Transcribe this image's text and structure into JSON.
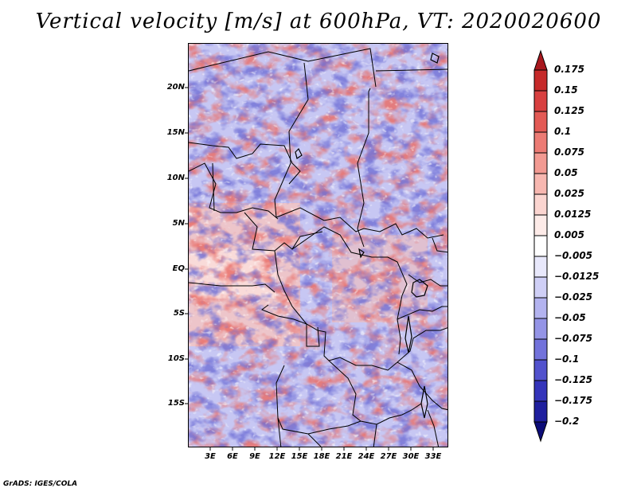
{
  "title": "Vertical velocity [m/s] at 600hPa, VT: 2020020600",
  "credit": "GrADS: IGES/COLA",
  "map": {
    "lat_labels": [
      "20N",
      "15N",
      "10N",
      "5N",
      "EQ",
      "5S",
      "10S",
      "15S"
    ],
    "lon_labels": [
      "3E",
      "6E",
      "9E",
      "12E",
      "15E",
      "18E",
      "21E",
      "24E",
      "27E",
      "30E",
      "33E"
    ]
  },
  "colorbar": {
    "labels": [
      "0.175",
      "0.15",
      "0.125",
      "0.1",
      "0.075",
      "0.05",
      "0.025",
      "0.0125",
      "0.005",
      "−0.005",
      "−0.0125",
      "−0.025",
      "−0.05",
      "−0.075",
      "−0.1",
      "−0.125",
      "−0.175",
      "−0.2"
    ],
    "colors": [
      "#a8181e",
      "#c62a2a",
      "#d84040",
      "#e35a55",
      "#ec7b74",
      "#f29a92",
      "#f7b7b0",
      "#fbd5d0",
      "#fdebe8",
      "#ffffff",
      "#e8e8fb",
      "#cfcff6",
      "#b3b3ef",
      "#9494e6",
      "#7272db",
      "#5252cd",
      "#3434ba",
      "#1f1f9e",
      "#0c0c78"
    ]
  }
}
